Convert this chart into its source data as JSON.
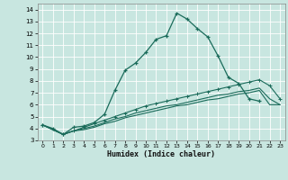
{
  "xlabel": "Humidex (Indice chaleur)",
  "xlim": [
    -0.5,
    23.5
  ],
  "ylim": [
    3,
    14.5
  ],
  "xticks": [
    0,
    1,
    2,
    3,
    4,
    5,
    6,
    7,
    8,
    9,
    10,
    11,
    12,
    13,
    14,
    15,
    16,
    17,
    18,
    19,
    20,
    21,
    22,
    23
  ],
  "yticks": [
    3,
    4,
    5,
    6,
    7,
    8,
    9,
    10,
    11,
    12,
    13,
    14
  ],
  "bg_color": "#c8e6e0",
  "grid_color": "#ffffff",
  "line_color": "#1a6b5a",
  "line1_x": [
    0,
    1,
    2,
    3,
    4,
    5,
    6,
    7,
    8,
    9,
    10,
    11,
    12,
    13,
    14,
    15,
    16,
    17,
    18,
    19,
    20,
    21
  ],
  "line1_y": [
    4.3,
    4.0,
    3.5,
    4.1,
    4.2,
    4.5,
    5.2,
    7.2,
    8.9,
    9.5,
    10.4,
    11.5,
    11.8,
    13.7,
    13.2,
    12.4,
    11.7,
    10.1,
    8.3,
    7.8,
    6.5,
    6.3
  ],
  "line2_x": [
    0,
    2,
    3,
    4,
    5,
    6,
    7,
    8,
    9,
    10,
    11,
    12,
    13,
    14,
    15,
    16,
    17,
    18,
    19,
    20,
    21,
    22,
    23
  ],
  "line2_y": [
    4.3,
    3.5,
    3.8,
    4.1,
    4.4,
    4.7,
    5.0,
    5.3,
    5.6,
    5.9,
    6.1,
    6.3,
    6.5,
    6.7,
    6.9,
    7.1,
    7.3,
    7.5,
    7.7,
    7.9,
    8.1,
    7.6,
    6.5
  ],
  "line3_x": [
    0,
    2,
    3,
    4,
    5,
    6,
    7,
    8,
    9,
    10,
    11,
    12,
    13,
    14,
    15,
    16,
    17,
    18,
    19,
    20,
    21,
    22,
    23
  ],
  "line3_y": [
    4.3,
    3.5,
    3.8,
    4.0,
    4.2,
    4.5,
    4.8,
    5.0,
    5.3,
    5.5,
    5.7,
    5.9,
    6.0,
    6.2,
    6.4,
    6.6,
    6.8,
    6.9,
    7.1,
    7.2,
    7.4,
    6.5,
    6.0
  ],
  "line4_x": [
    0,
    2,
    3,
    4,
    5,
    6,
    7,
    8,
    9,
    10,
    11,
    12,
    13,
    14,
    15,
    16,
    17,
    18,
    19,
    20,
    21,
    22,
    23
  ],
  "line4_y": [
    4.3,
    3.5,
    3.8,
    3.9,
    4.1,
    4.4,
    4.6,
    4.9,
    5.1,
    5.3,
    5.5,
    5.7,
    5.9,
    6.0,
    6.2,
    6.4,
    6.5,
    6.7,
    6.9,
    7.0,
    7.2,
    6.0,
    6.0
  ]
}
